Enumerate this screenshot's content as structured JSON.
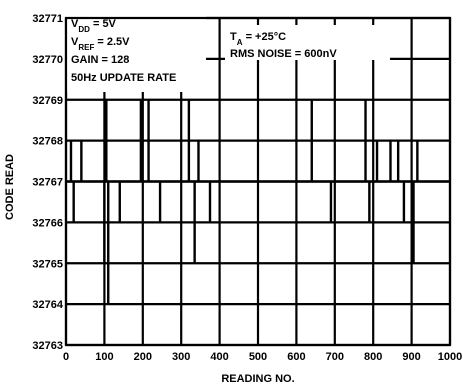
{
  "chart_data": {
    "type": "line",
    "title": "",
    "xlabel": "READING NO.",
    "ylabel": "CODE READ",
    "xlim": [
      0,
      1000
    ],
    "ylim": [
      32763,
      32771
    ],
    "grid": true,
    "x_ticks": [
      "0",
      "100",
      "200",
      "300",
      "400",
      "500",
      "600",
      "700",
      "800",
      "900",
      "1000"
    ],
    "y_ticks": [
      "32763",
      "32764",
      "32765",
      "32766",
      "32767",
      "32768",
      "32769",
      "32770",
      "32771"
    ],
    "annotations_left": [
      {
        "main": "V",
        "sub": "DD",
        "rest": " = 5V"
      },
      {
        "main": "V",
        "sub": "REF",
        "rest": " = 2.5V"
      },
      {
        "main": "GAIN = 128",
        "sub": "",
        "rest": ""
      },
      {
        "main": "50Hz UPDATE RATE",
        "sub": "",
        "rest": ""
      }
    ],
    "annotations_right": [
      {
        "main": "T",
        "sub": "A",
        "rest": " = +25°C"
      },
      {
        "main": "RMS NOISE = 600nV",
        "sub": "",
        "rest": ""
      }
    ],
    "series": [
      {
        "baseline": 32767,
        "excursions": [
          {
            "x": 13,
            "value": 32768
          },
          {
            "x": 20,
            "value": 32766
          },
          {
            "x": 40,
            "value": 32768
          },
          {
            "x": 100,
            "value": 32765
          },
          {
            "x": 105,
            "value": 32769
          },
          {
            "x": 110,
            "value": 32764
          },
          {
            "x": 140,
            "value": 32766
          },
          {
            "x": 195,
            "value": 32769
          },
          {
            "x": 215,
            "value": 32769
          },
          {
            "x": 245,
            "value": 32766
          },
          {
            "x": 320,
            "value": 32769
          },
          {
            "x": 335,
            "value": 32765
          },
          {
            "x": 345,
            "value": 32768
          },
          {
            "x": 375,
            "value": 32766
          },
          {
            "x": 395,
            "value": 32767
          },
          {
            "x": 640,
            "value": 32769
          },
          {
            "x": 690,
            "value": 32766
          },
          {
            "x": 780,
            "value": 32769
          },
          {
            "x": 790,
            "value": 32766
          },
          {
            "x": 810,
            "value": 32768
          },
          {
            "x": 845,
            "value": 32768
          },
          {
            "x": 865,
            "value": 32768
          },
          {
            "x": 880,
            "value": 32766
          },
          {
            "x": 905,
            "value": 32765
          },
          {
            "x": 915,
            "value": 32768
          }
        ]
      }
    ]
  }
}
